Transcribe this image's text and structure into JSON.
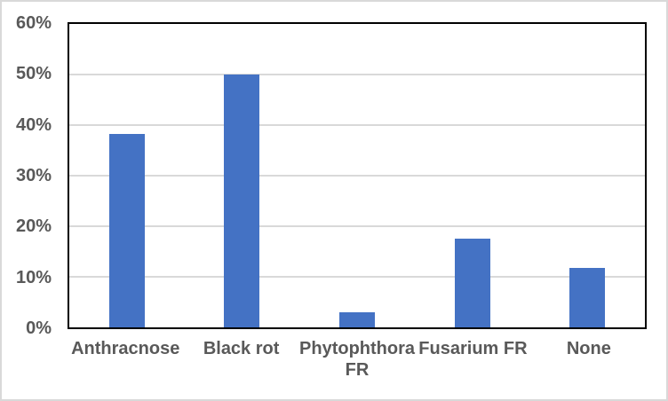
{
  "chart_data": {
    "type": "bar",
    "categories": [
      "Anthracnose",
      "Black rot",
      "Phytophthora FR",
      "Fusarium FR",
      "None"
    ],
    "values": [
      38.2,
      50,
      2.9,
      17.6,
      11.8
    ],
    "value_format": "percent",
    "ylim": [
      0,
      60
    ],
    "ytick_step": 10,
    "yticks": [
      {
        "value": 60,
        "label": "60%"
      },
      {
        "value": 50,
        "label": "50%"
      },
      {
        "value": 40,
        "label": "40%"
      },
      {
        "value": 30,
        "label": "30%"
      },
      {
        "value": 20,
        "label": "20%"
      },
      {
        "value": 10,
        "label": "10%"
      },
      {
        "value": 0,
        "label": "0%"
      }
    ],
    "grid": true,
    "legend": false,
    "colors": {
      "bar": "#4472C4",
      "gridline": "#D9D9D9",
      "plot_border": "#000000",
      "outer_border": "#D9D9D9",
      "axis_text": "#595959",
      "background": "#FFFFFF"
    }
  }
}
